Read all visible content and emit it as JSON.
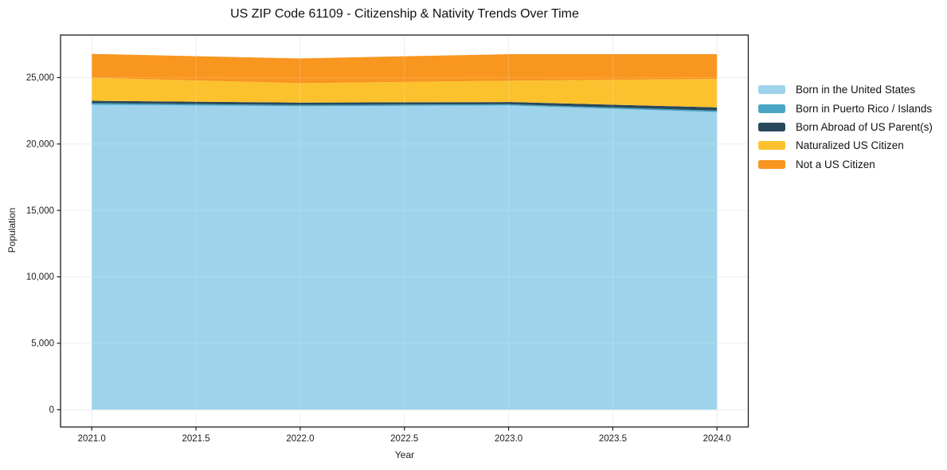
{
  "chart_data": {
    "type": "area",
    "stacked": true,
    "title": "US ZIP Code 61109 - Citizenship & Nativity Trends Over Time",
    "xlabel": "Year",
    "ylabel": "Population",
    "x": [
      2021,
      2022,
      2023,
      2024
    ],
    "series": [
      {
        "key": "born-us",
        "name": "Born in the United States",
        "color": "#9ed3eb",
        "values": [
          22950,
          22840,
          22900,
          22400
        ]
      },
      {
        "key": "born-pr",
        "name": "Born in Puerto Rico / Islands",
        "color": "#4aa5c4",
        "values": [
          120,
          100,
          90,
          110
        ]
      },
      {
        "key": "born-abroad",
        "name": "Born Abroad of US Parent(s)",
        "color": "#27495b",
        "values": [
          180,
          180,
          170,
          250
        ]
      },
      {
        "key": "naturalized",
        "name": "Naturalized US Citizen",
        "color": "#fcc22e",
        "values": [
          1730,
          1460,
          1600,
          2140
        ]
      },
      {
        "key": "not-citizen",
        "name": "Not a US Citizen",
        "color": "#f8961f",
        "values": [
          1800,
          1860,
          2000,
          1860
        ]
      }
    ],
    "xlim": [
      2020.85,
      2024.15
    ],
    "ylim": [
      -1300,
      28200
    ],
    "xticks": {
      "values": [
        2021,
        2021.5,
        2022,
        2022.5,
        2023,
        2023.5,
        2024
      ],
      "labels": [
        "2021.0",
        "2021.5",
        "2022.0",
        "2022.5",
        "2023.0",
        "2023.5",
        "2024.0"
      ]
    },
    "yticks": {
      "values": [
        0,
        5000,
        10000,
        15000,
        20000,
        25000
      ],
      "labels": [
        "0",
        "5,000",
        "10,000",
        "15,000",
        "20,000",
        "25,000"
      ]
    },
    "grid": true,
    "legend_position": "right of plot, top",
    "style": {
      "grid_color": "#eaeaea",
      "spine_color": "#1c1c1c",
      "text_color": "#1c1c1c",
      "background": "#ffffff"
    }
  }
}
